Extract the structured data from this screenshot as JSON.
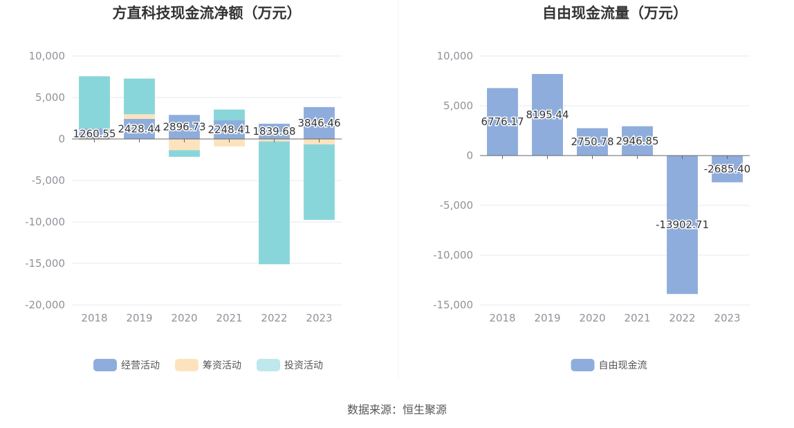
{
  "chart_data": [
    {
      "type": "bar",
      "stacked": true,
      "title": "方直科技现金流净额（万元）",
      "categories": [
        "2018",
        "2019",
        "2020",
        "2021",
        "2022",
        "2023"
      ],
      "ylim": [
        -20000,
        10000
      ],
      "yticks": [
        10000,
        5000,
        0,
        -5000,
        -10000,
        -15000,
        -20000
      ],
      "ytick_labels": [
        "10,000",
        "5,000",
        "0",
        "-5,000",
        "-10,000",
        "-15,000",
        "-20,000"
      ],
      "series": [
        {
          "name": "经营活动",
          "color": "#8eaddc",
          "values": [
            1260.55,
            2428.44,
            2896.73,
            2248.41,
            1839.68,
            3846.46
          ],
          "labels": [
            "1260.55",
            "2428.44",
            "2896.73",
            "2248.41",
            "1839.68",
            "3846.46"
          ]
        },
        {
          "name": "筹资活动",
          "color": "#fde3bd",
          "values": [
            -150,
            550,
            -1350,
            -900,
            -300,
            -650
          ]
        },
        {
          "name": "投资活动",
          "color": "#88d6da",
          "values": [
            6300,
            4300,
            -800,
            1300,
            -14800,
            -9100
          ]
        }
      ],
      "legend_position": "bottom"
    },
    {
      "type": "bar",
      "title": "自由现金流量（万元）",
      "categories": [
        "2018",
        "2019",
        "2020",
        "2021",
        "2022",
        "2023"
      ],
      "ylim": [
        -15000,
        10000
      ],
      "yticks": [
        10000,
        5000,
        0,
        -5000,
        -10000,
        -15000
      ],
      "ytick_labels": [
        "10,000",
        "5,000",
        "0",
        "-5,000",
        "-10,000",
        "-15,000"
      ],
      "series": [
        {
          "name": "自由现金流",
          "color": "#8eaddc",
          "values": [
            6776.17,
            8195.44,
            2750.78,
            2946.85,
            -13902.71,
            -2685.4
          ],
          "labels": [
            "6776.17",
            "8195.44",
            "2750.78",
            "2946.85",
            "-13902.71",
            "-2685.40"
          ]
        }
      ],
      "legend_position": "bottom"
    }
  ],
  "source": "数据来源：恒生聚源",
  "colors": {
    "axis": "#666666",
    "grid": "#e6e8ef",
    "tick_text": "#8f9298"
  }
}
